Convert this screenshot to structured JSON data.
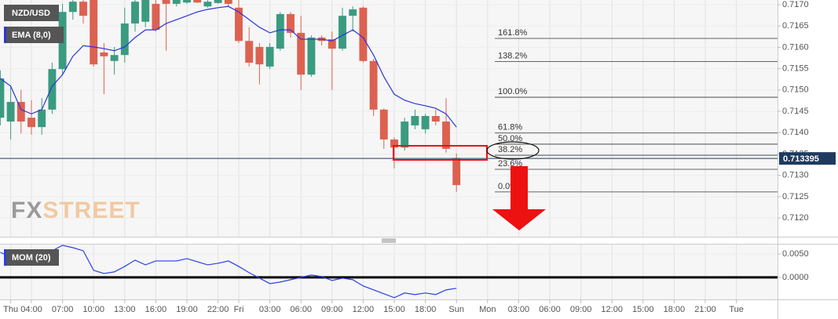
{
  "chart_data": [
    {
      "type": "candlestick",
      "title": "NZD/USD",
      "x": [
        1,
        2,
        3,
        4,
        5,
        6,
        7,
        8,
        9,
        10,
        11,
        12,
        13,
        14,
        15,
        16,
        17,
        18,
        19,
        20,
        21,
        22,
        23,
        24,
        25,
        26,
        27,
        28,
        29,
        30,
        31,
        32,
        33,
        34,
        35,
        36,
        37,
        38,
        39,
        40,
        41,
        42,
        43,
        44,
        45
      ],
      "open": [
        0.71435,
        0.71426,
        0.71472,
        0.71435,
        0.71413,
        0.71454,
        0.71549,
        0.71683,
        0.71707,
        0.71711,
        0.71588,
        0.71568,
        0.71582,
        0.71656,
        0.7166,
        0.71702,
        0.71711,
        0.71702,
        0.71705,
        0.71711,
        0.71696,
        0.71704,
        0.71711,
        0.71693,
        0.71615,
        0.71601,
        0.71555,
        0.71597,
        0.71678,
        0.71634,
        0.71536,
        0.71623,
        0.71619,
        0.71597,
        0.71674,
        0.71693,
        0.71568,
        0.71454,
        0.71384,
        0.71365,
        0.71417,
        0.71408,
        0.71439,
        0.71426,
        0.7134
      ],
      "high": [
        0.71546,
        0.71509,
        0.715,
        0.71476,
        0.71481,
        0.71564,
        0.71702,
        0.71711,
        0.71711,
        0.71711,
        0.7161,
        0.71601,
        0.71693,
        0.71711,
        0.71711,
        0.71711,
        0.71711,
        0.71711,
        0.71711,
        0.71711,
        0.71711,
        0.71711,
        0.71711,
        0.71711,
        0.71647,
        0.7161,
        0.7161,
        0.71683,
        0.71683,
        0.71674,
        0.71628,
        0.71628,
        0.71637,
        0.71693,
        0.71696,
        0.71696,
        0.71573,
        0.71457,
        0.71389,
        0.71435,
        0.71454,
        0.71444,
        0.71454,
        0.71481,
        0.71351
      ],
      "low": [
        0.71417,
        0.71384,
        0.71398,
        0.71395,
        0.71395,
        0.71444,
        0.71536,
        0.71665,
        0.71656,
        0.71555,
        0.7149,
        0.71536,
        0.71564,
        0.71637,
        0.71647,
        0.71637,
        0.71592,
        0.71696,
        0.71702,
        0.71704,
        0.71693,
        0.71702,
        0.71696,
        0.7161,
        0.71555,
        0.71513,
        0.71549,
        0.71592,
        0.71623,
        0.715,
        0.71531,
        0.71604,
        0.715,
        0.71592,
        0.71637,
        0.71564,
        0.71439,
        0.71362,
        0.71316,
        0.71358,
        0.71408,
        0.71398,
        0.71417,
        0.71353,
        0.71261
      ],
      "close": [
        0.71527,
        0.71472,
        0.71426,
        0.71413,
        0.71454,
        0.71549,
        0.71683,
        0.71707,
        0.71674,
        0.7156,
        0.71579,
        0.71582,
        0.71656,
        0.71707,
        0.71711,
        0.71641,
        0.71702,
        0.71711,
        0.71711,
        0.71705,
        0.71707,
        0.71711,
        0.71702,
        0.71615,
        0.71564,
        0.7156,
        0.71601,
        0.71678,
        0.71634,
        0.71536,
        0.71623,
        0.71615,
        0.71597,
        0.71674,
        0.71689,
        0.71568,
        0.71454,
        0.71384,
        0.71365,
        0.71426,
        0.71439,
        0.71439,
        0.71426,
        0.71362,
        0.71277
      ],
      "up_color": "#3a9b80",
      "down_color": "#dd6150",
      "series": [
        {
          "name": "EMA (8,0)",
          "color": "#2b35d8",
          "values": [
            0.71527,
            0.71509,
            0.71454,
            0.71444,
            0.71454,
            0.71509,
            0.71536,
            0.71579,
            0.71604,
            0.71601,
            0.71597,
            0.71592,
            0.71601,
            0.71623,
            0.71641,
            0.71641,
            0.71656,
            0.71665,
            0.71674,
            0.71683,
            0.71689,
            0.71693,
            0.71696,
            0.71683,
            0.71665,
            0.71647,
            0.71634,
            0.71641,
            0.71641,
            0.71619,
            0.71619,
            0.71619,
            0.71615,
            0.71628,
            0.71641,
            0.71623,
            0.71582,
            0.71531,
            0.7149,
            0.71476,
            0.71468,
            0.71463,
            0.71457,
            0.71444,
            0.71413
          ]
        }
      ],
      "xlim": [
        0.97,
        75.97
      ],
      "ylim": [
        0.71156,
        0.71711
      ],
      "yticks": [
        {
          "value": 0.712,
          "label": "0.7120"
        },
        {
          "value": 0.7125,
          "label": "0.7125"
        },
        {
          "value": 0.713,
          "label": "0.7130"
        },
        {
          "value": 0.7135,
          "label": "0.7135"
        },
        {
          "value": 0.714,
          "label": "0.7140"
        },
        {
          "value": 0.7145,
          "label": "0.7145"
        },
        {
          "value": 0.715,
          "label": "0.7150"
        },
        {
          "value": 0.7155,
          "label": "0.7155"
        },
        {
          "value": 0.716,
          "label": "0.7160"
        },
        {
          "value": 0.7165,
          "label": "0.7165"
        },
        {
          "value": 0.717,
          "label": "0.7170"
        }
      ],
      "last_price": 0.713395,
      "last_price_color": "#1f3a5f",
      "fib_levels": [
        {
          "label": "161.8%",
          "value": 0.71621
        },
        {
          "label": "138.2%",
          "value": 0.71567
        },
        {
          "label": "100.0%",
          "value": 0.71483
        },
        {
          "label": "61.8%",
          "value": 0.71399
        },
        {
          "label": "50.0%",
          "value": 0.71373
        },
        {
          "label": "38.2%",
          "value": 0.71347
        },
        {
          "label": "23.6%",
          "value": 0.71314
        },
        {
          "label": "0.0%",
          "value": 0.71261
        }
      ]
    },
    {
      "type": "line",
      "x": [
        1,
        2,
        3,
        4,
        5,
        6,
        7,
        8,
        9,
        10,
        11,
        12,
        13,
        14,
        15,
        16,
        17,
        18,
        19,
        20,
        21,
        22,
        23,
        24,
        25,
        26,
        27,
        28,
        29,
        30,
        31,
        32,
        33,
        34,
        35,
        36,
        37,
        38,
        39,
        40,
        41,
        42,
        43,
        44,
        45
      ],
      "series": [
        {
          "name": "MOM (20)",
          "color": "#2840e6",
          "values": [
            0.00533,
            0.00433,
            0.00333,
            0.00267,
            0.004,
            0.00567,
            0.00683,
            0.00633,
            0.00567,
            0.0015,
            0.00083,
            0.00117,
            0.00233,
            0.00367,
            0.00267,
            0.0035,
            0.0035,
            0.0035,
            0.004,
            0.00333,
            0.00267,
            0.003,
            0.0035,
            0.00233,
            0.001,
            -0.00017,
            -0.00133,
            -0.001,
            -0.0005,
            0,
            0.0005,
            0.00017,
            -0.00067,
            -0.00017,
            -0.0005,
            -0.00183,
            -0.00267,
            -0.0035,
            -0.00433,
            -0.00333,
            -0.00367,
            -0.00333,
            -0.00367,
            -0.00267,
            -0.00233
          ]
        }
      ],
      "xlim": [
        0.97,
        75.97
      ],
      "ylim": [
        -0.0047,
        0.007
      ],
      "yticks": [
        {
          "value": 0,
          "label": "0.0000"
        },
        {
          "value": 0.005,
          "label": "0.0050"
        }
      ],
      "xticks": [
        {
          "value": 2,
          "label": "Thu"
        },
        {
          "value": 4,
          "label": "04:00"
        },
        {
          "value": 7,
          "label": "07:00"
        },
        {
          "value": 10,
          "label": "10:00"
        },
        {
          "value": 13,
          "label": "13:00"
        },
        {
          "value": 16,
          "label": "16:00"
        },
        {
          "value": 19,
          "label": "19:00"
        },
        {
          "value": 22,
          "label": "22:00"
        },
        {
          "value": 24,
          "label": "Fri"
        },
        {
          "value": 27,
          "label": "03:00"
        },
        {
          "value": 30,
          "label": "06:00"
        },
        {
          "value": 33,
          "label": "09:00"
        },
        {
          "value": 36,
          "label": "12:00"
        },
        {
          "value": 39,
          "label": "15:00"
        },
        {
          "value": 42,
          "label": "18:00"
        },
        {
          "value": 45,
          "label": "Sun"
        },
        {
          "value": 48,
          "label": "Mon"
        },
        {
          "value": 51,
          "label": "03:00"
        },
        {
          "value": 54,
          "label": "06:00"
        },
        {
          "value": 57,
          "label": "09:00"
        },
        {
          "value": 60,
          "label": "12:00"
        },
        {
          "value": 63,
          "label": "15:00"
        },
        {
          "value": 66,
          "label": "18:00"
        },
        {
          "value": 69,
          "label": "21:00"
        },
        {
          "value": 72,
          "label": "Tue"
        }
      ]
    }
  ],
  "watermark": {
    "prefix": "FX",
    "suffix": "STREET"
  }
}
